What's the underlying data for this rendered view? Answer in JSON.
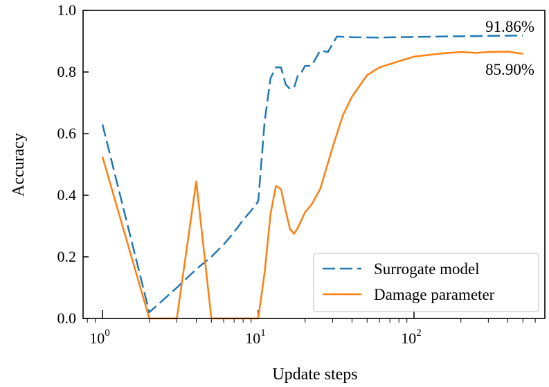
{
  "chart_data": {
    "type": "line",
    "title": "",
    "xlabel": "Update steps",
    "ylabel": "Accuracy",
    "xscale": "log",
    "xlim": [
      0.7,
      650
    ],
    "ylim": [
      0.0,
      1.0
    ],
    "x_ticks": [
      {
        "base": "10",
        "exp": "0",
        "value": 1
      },
      {
        "base": "10",
        "exp": "1",
        "value": 10
      },
      {
        "base": "10",
        "exp": "2",
        "value": 100
      }
    ],
    "y_ticks": [
      "0.0",
      "0.2",
      "0.4",
      "0.6",
      "0.8",
      "1.0"
    ],
    "grid": false,
    "legend_position": "bottom-right",
    "series": [
      {
        "name": "Surrogate model",
        "color": "#1f77b4",
        "style": "dashed",
        "x": [
          1,
          2,
          3,
          4,
          5,
          6,
          7,
          8,
          9,
          10,
          11,
          12,
          13,
          14,
          15,
          16,
          17,
          18,
          19,
          20,
          22,
          25,
          28,
          32,
          40,
          60,
          100,
          200,
          300,
          500
        ],
        "y": [
          0.63,
          0.02,
          0.1,
          0.16,
          0.2,
          0.24,
          0.28,
          0.32,
          0.35,
          0.38,
          0.64,
          0.78,
          0.815,
          0.815,
          0.76,
          0.745,
          0.75,
          0.79,
          0.8,
          0.82,
          0.82,
          0.87,
          0.865,
          0.915,
          0.913,
          0.912,
          0.914,
          0.916,
          0.917,
          0.9186
        ]
      },
      {
        "name": "Damage parameter",
        "color": "#ff7f0e",
        "style": "solid",
        "x": [
          1,
          2,
          3,
          4,
          5,
          6,
          7,
          8,
          9,
          10,
          11,
          12,
          13,
          14,
          15,
          16,
          17,
          18,
          20,
          22,
          25,
          30,
          35,
          40,
          50,
          60,
          80,
          100,
          150,
          200,
          250,
          300,
          400,
          500
        ],
        "y": [
          0.525,
          0.0,
          0.0,
          0.445,
          0.0,
          0.0,
          0.0,
          0.0,
          0.0,
          0.0,
          0.15,
          0.34,
          0.43,
          0.42,
          0.35,
          0.29,
          0.275,
          0.295,
          0.345,
          0.37,
          0.42,
          0.555,
          0.66,
          0.72,
          0.79,
          0.815,
          0.835,
          0.85,
          0.86,
          0.865,
          0.862,
          0.865,
          0.866,
          0.859
        ]
      }
    ],
    "annotations": [
      "91.86%",
      "85.90%"
    ]
  }
}
